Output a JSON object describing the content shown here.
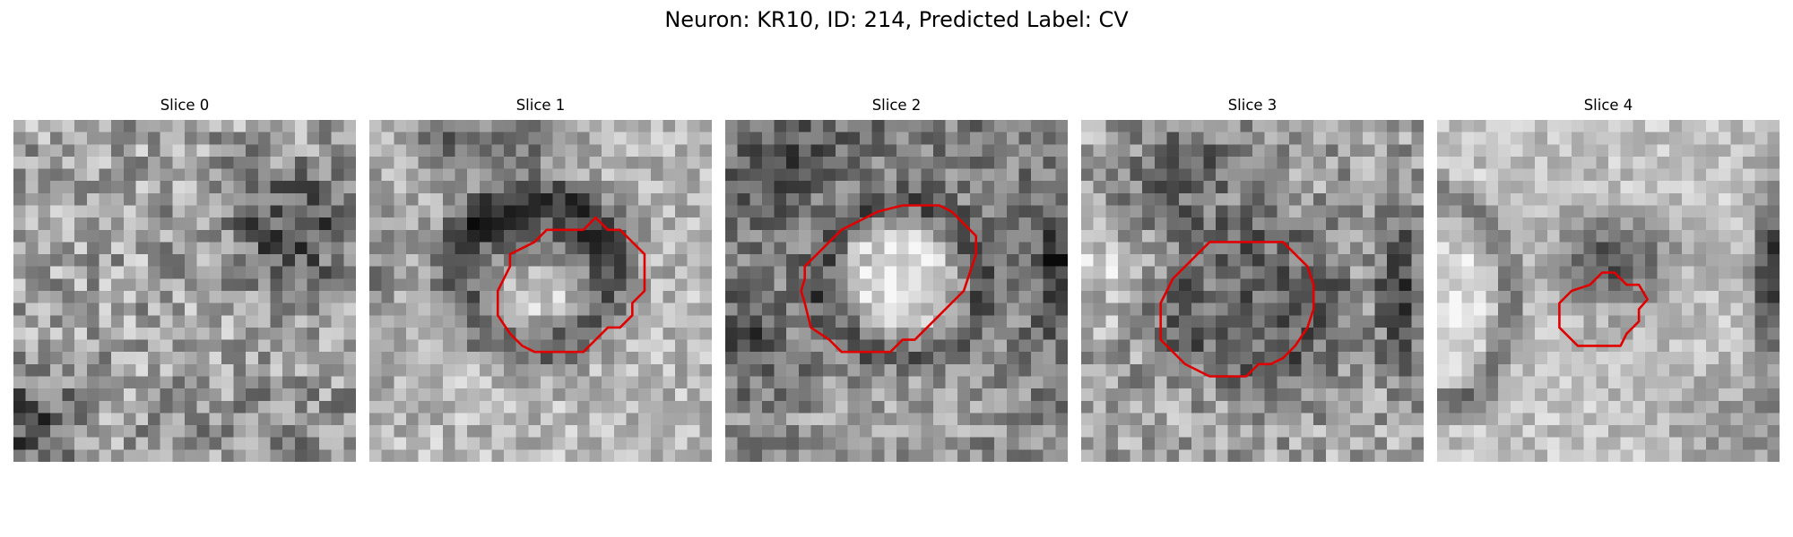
{
  "figure": {
    "title": "Neuron: KR10, ID: 214, Predicted Label: CV"
  },
  "colors": {
    "contour": "#e00000",
    "background": "#ffffff"
  },
  "slices": [
    {
      "title": "Slice 0",
      "has_contour": false
    },
    {
      "title": "Slice 1",
      "has_contour": true
    },
    {
      "title": "Slice 2",
      "has_contour": true
    },
    {
      "title": "Slice 3",
      "has_contour": true
    },
    {
      "title": "Slice 4",
      "has_contour": true
    }
  ]
}
